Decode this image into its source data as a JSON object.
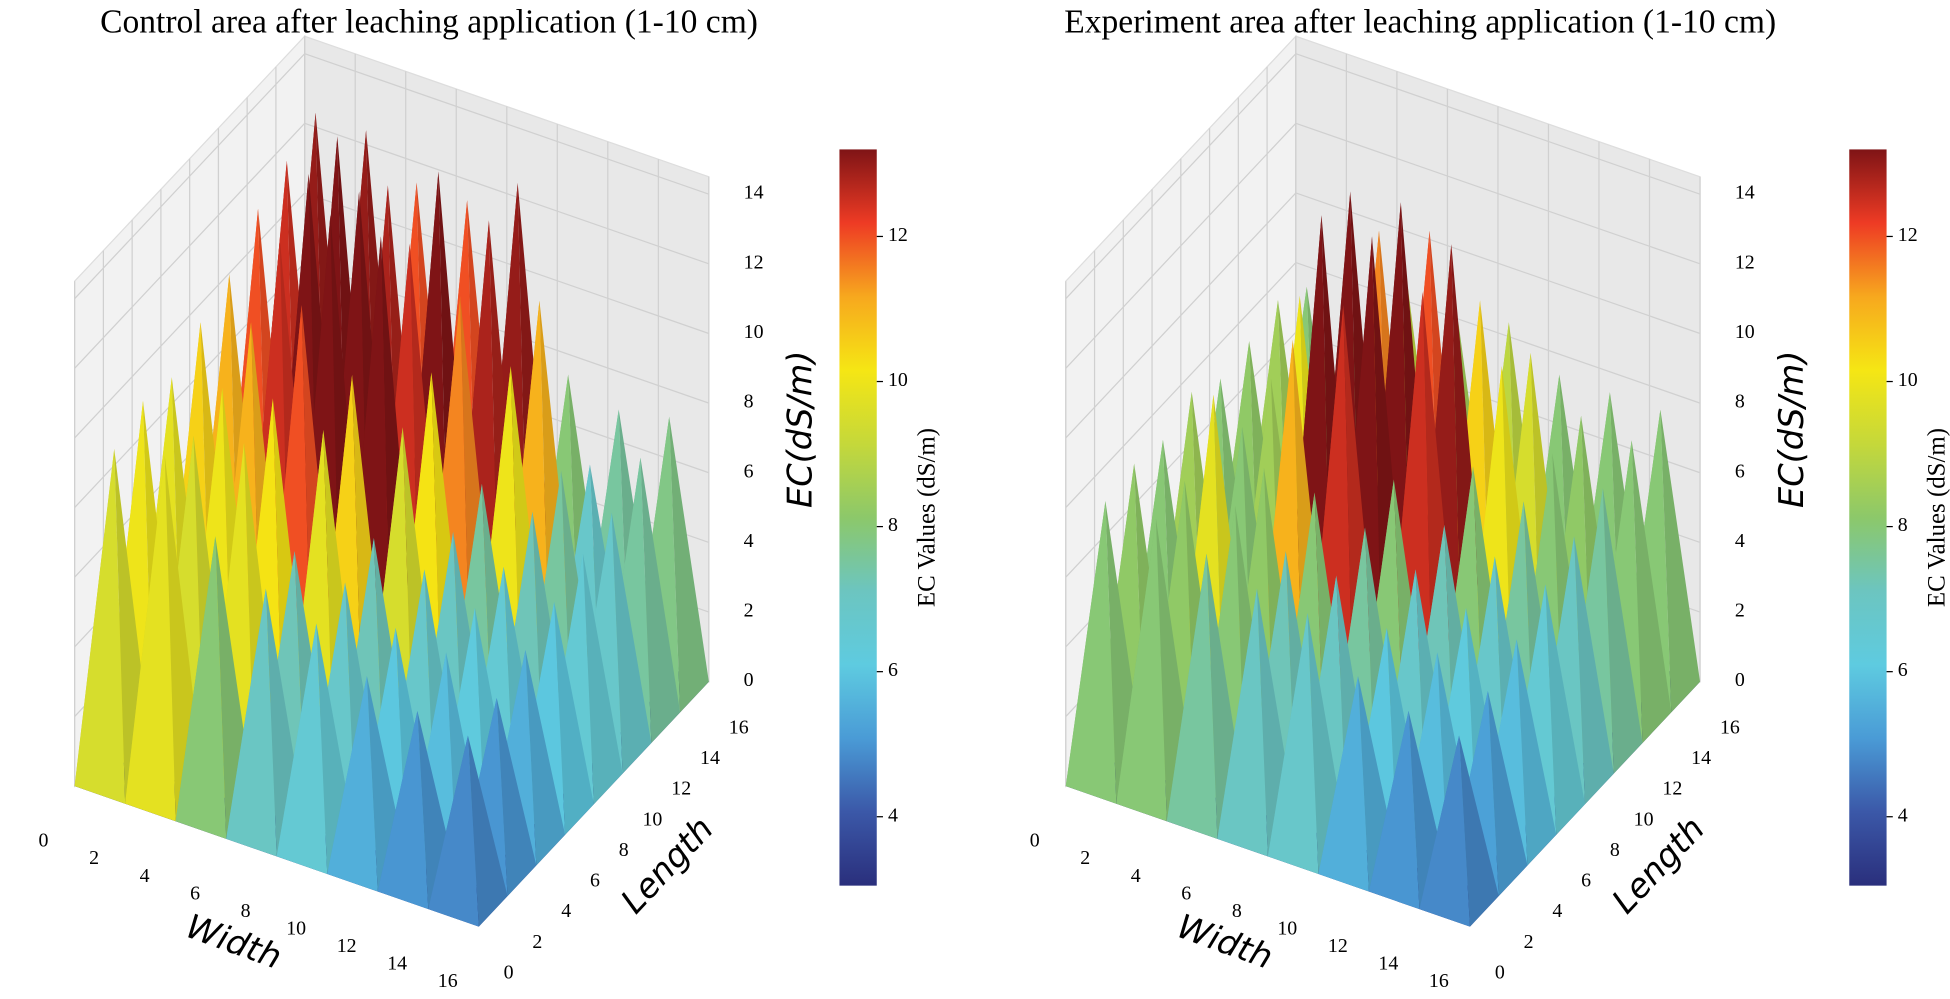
{
  "chart_data": [
    {
      "type": "surface3d",
      "title": "Control area after leaching application (1-10 cm)",
      "x_label": "Width",
      "y_label": "Length",
      "z_label": "EC(dS/m)",
      "colorbar_label": "EC Values (dS/m)",
      "x": [
        1,
        3,
        5,
        7,
        9,
        11,
        13,
        15
      ],
      "y": [
        1,
        3,
        5,
        7,
        9,
        11,
        13,
        15
      ],
      "z": [
        [
          9.5,
          10,
          9.8,
          10.5,
          11,
          12,
          12.5,
          13
        ],
        [
          9.8,
          9.5,
          10,
          11,
          12.5,
          13.5,
          13.7,
          13
        ],
        [
          8,
          9.8,
          10.2,
          12,
          13.7,
          13.5,
          12.8,
          12
        ],
        [
          7,
          7.2,
          9.8,
          10.5,
          13.6,
          12.5,
          13.7,
          12
        ],
        [
          6.5,
          6.8,
          7.2,
          9.5,
          10.2,
          11.5,
          12.8,
          13
        ],
        [
          5.5,
          6,
          6.8,
          7,
          7.5,
          10,
          11,
          8
        ],
        [
          5,
          5.8,
          6.2,
          6.5,
          7.2,
          7.5,
          6.8,
          7.5
        ],
        [
          4.8,
          5,
          5.5,
          6,
          6.5,
          6.8,
          7.5,
          7.8
        ]
      ],
      "xlim": [
        0,
        16
      ],
      "ylim": [
        0,
        16
      ],
      "zlim": [
        0,
        14.5
      ],
      "xticks": [
        0,
        2,
        4,
        6,
        8,
        10,
        12,
        14,
        16
      ],
      "yticks": [
        0,
        2,
        4,
        6,
        8,
        10,
        12,
        14,
        16
      ],
      "zticks": [
        0,
        2,
        4,
        6,
        8,
        10,
        12,
        14
      ],
      "clim": [
        3.05,
        13.2
      ],
      "cticks": [
        4,
        6,
        8,
        10,
        12
      ],
      "colormap": [
        "#2a2f7c",
        "#3b58a8",
        "#4a9bd6",
        "#5ecbe0",
        "#6cc5c0",
        "#8cc86a",
        "#c5d83a",
        "#f5e614",
        "#f7a81e",
        "#ee3b24",
        "#7f1416"
      ],
      "grid": true
    },
    {
      "type": "surface3d",
      "title": "Experiment area after leaching application (1-10 cm)",
      "x_label": "Width",
      "y_label": "Length",
      "z_label": "EC(dS/m)",
      "colorbar_label": "EC Values (dS/m)",
      "x": [
        1,
        3,
        5,
        7,
        9,
        11,
        13,
        15
      ],
      "y": [
        1,
        3,
        5,
        7,
        9,
        11,
        13,
        15
      ],
      "z": [
        [
          8,
          8.2,
          8,
          8.5,
          8,
          8.2,
          8.5,
          8
        ],
        [
          8,
          8.2,
          9.8,
          8,
          8.5,
          10,
          8.2,
          8
        ],
        [
          7.5,
          8,
          8.2,
          11,
          13.7,
          13.5,
          11.5,
          9
        ],
        [
          7,
          7.2,
          8,
          12.5,
          13.6,
          13.7,
          12,
          8.5
        ],
        [
          6.8,
          7,
          7.5,
          8,
          12.5,
          13,
          10.5,
          9
        ],
        [
          5.5,
          6,
          6.8,
          7.2,
          8,
          10,
          9.5,
          8
        ],
        [
          5,
          5.8,
          6.2,
          6.8,
          7.5,
          8,
          8.2,
          8
        ],
        [
          4.8,
          5.2,
          5.8,
          6.5,
          7,
          7.5,
          8,
          8
        ]
      ],
      "xlim": [
        0,
        16
      ],
      "ylim": [
        0,
        16
      ],
      "zlim": [
        0,
        14.5
      ],
      "xticks": [
        0,
        2,
        4,
        6,
        8,
        10,
        12,
        14,
        16
      ],
      "yticks": [
        0,
        2,
        4,
        6,
        8,
        10,
        12,
        14,
        16
      ],
      "zticks": [
        0,
        2,
        4,
        6,
        8,
        10,
        12,
        14
      ],
      "clim": [
        3.05,
        13.2
      ],
      "cticks": [
        4,
        6,
        8,
        10,
        12
      ],
      "colormap": [
        "#2a2f7c",
        "#3b58a8",
        "#4a9bd6",
        "#5ecbe0",
        "#6cc5c0",
        "#8cc86a",
        "#c5d83a",
        "#f5e614",
        "#f7a81e",
        "#ee3b24",
        "#7f1416"
      ],
      "grid": true
    }
  ]
}
